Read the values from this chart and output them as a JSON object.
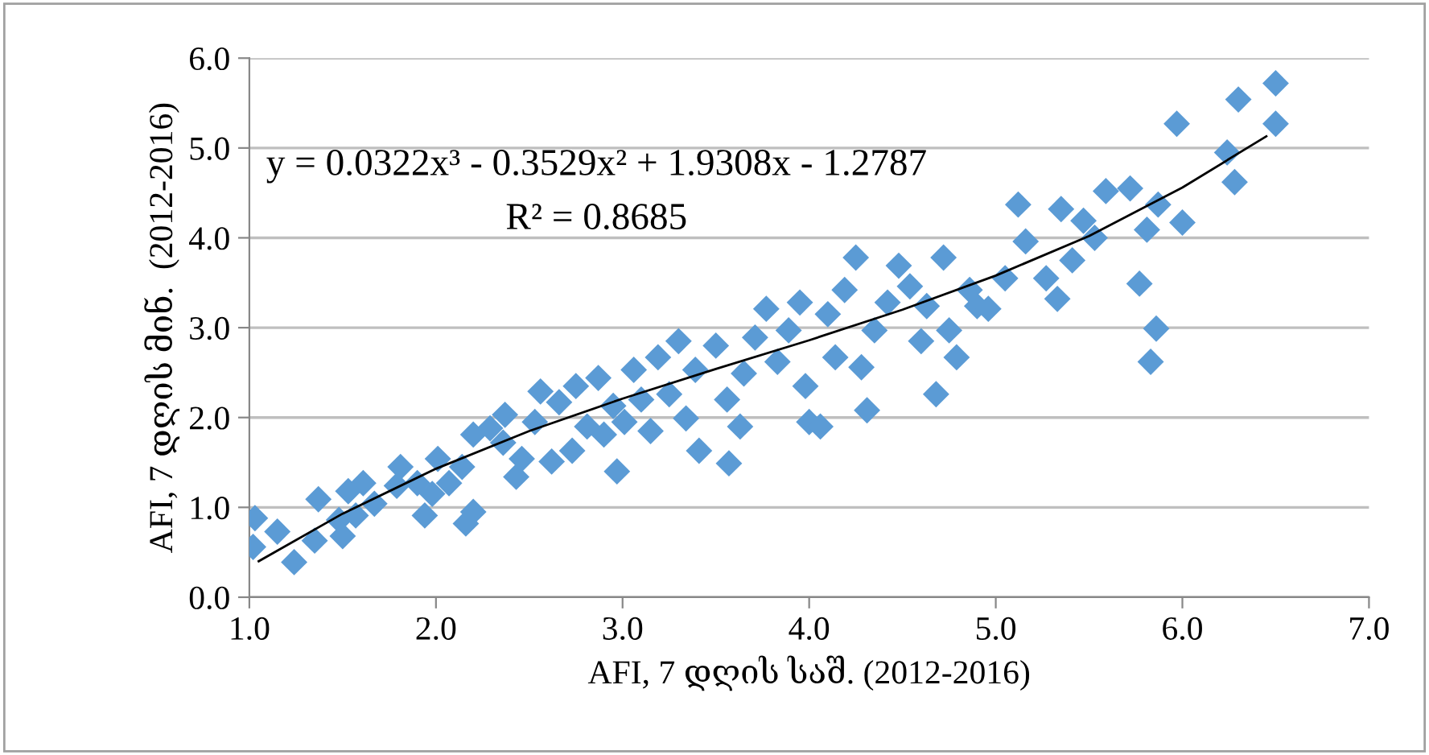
{
  "chart_data": {
    "type": "scatter",
    "xlabel": "AFI, 7 დღის საშ. (2012-2016)",
    "ylabel": "AFI, 7 დღის მინ.  (2012-2016)",
    "annotations": [
      "y = 0.0322x³ - 0.3529x² + 1.9308x - 1.2787",
      "R² = 0.8685"
    ],
    "xlim": [
      1.0,
      7.0
    ],
    "xticks": [
      {
        "value": 1,
        "label": "1.0"
      },
      {
        "value": 2,
        "label": "2.0"
      },
      {
        "value": 3,
        "label": "3.0"
      },
      {
        "value": 4,
        "label": "4.0"
      },
      {
        "value": 5,
        "label": "5.0"
      },
      {
        "value": 6,
        "label": "6.0"
      },
      {
        "value": 7,
        "label": "7.0"
      }
    ],
    "ylim": [
      0.0,
      6.0
    ],
    "yticks": [
      {
        "value": 0,
        "label": "0.0"
      },
      {
        "value": 1,
        "label": "1.0"
      },
      {
        "value": 2,
        "label": "2.0"
      },
      {
        "value": 3,
        "label": "3.0"
      },
      {
        "value": 4,
        "label": "4.0"
      },
      {
        "value": 5,
        "label": "5.0"
      },
      {
        "value": 6,
        "label": "6.0"
      }
    ],
    "grid": "y",
    "marker": "diamond",
    "series": [
      {
        "color": "#5b9bd5",
        "x": [
          1.03,
          1.02,
          1.15,
          1.24,
          1.35,
          1.37,
          1.48,
          1.5,
          1.57,
          1.61,
          1.53,
          1.67,
          1.79,
          1.81,
          1.9,
          1.94,
          1.98,
          2.01,
          2.07,
          2.14,
          2.16,
          2.2,
          2.2,
          2.29,
          2.36,
          2.37,
          2.43,
          2.46,
          2.53,
          2.56,
          2.62,
          2.66,
          2.73,
          2.75,
          2.81,
          2.87,
          2.9,
          2.95,
          2.97,
          3.01,
          3.06,
          3.1,
          3.15,
          3.19,
          3.25,
          3.3,
          3.34,
          3.39,
          3.41,
          3.5,
          3.56,
          3.57,
          3.63,
          3.65,
          3.71,
          3.77,
          3.83,
          3.89,
          3.95,
          3.98,
          4.0,
          4.06,
          4.1,
          4.14,
          4.19,
          4.25,
          4.28,
          4.31,
          4.35,
          4.42,
          4.48,
          4.54,
          4.6,
          4.63,
          4.68,
          4.72,
          4.75,
          4.79,
          4.86,
          4.9,
          4.96,
          5.05,
          5.16,
          5.27,
          5.33,
          5.41,
          5.12,
          5.35,
          5.47,
          5.53,
          5.59,
          5.72,
          5.77,
          5.81,
          5.83,
          5.86,
          5.87,
          5.97,
          6.0,
          6.24,
          6.28,
          6.3,
          6.5,
          6.5
        ],
        "values": [
          0.88,
          0.56,
          0.73,
          0.39,
          0.63,
          1.09,
          0.86,
          0.68,
          0.91,
          1.27,
          1.18,
          1.04,
          1.24,
          1.45,
          1.27,
          0.91,
          1.15,
          1.54,
          1.27,
          1.45,
          0.82,
          0.95,
          1.81,
          1.88,
          1.72,
          2.03,
          1.34,
          1.54,
          1.95,
          2.29,
          1.51,
          2.17,
          1.63,
          2.35,
          1.9,
          2.44,
          1.81,
          2.13,
          1.4,
          1.95,
          2.53,
          2.2,
          1.85,
          2.67,
          2.26,
          2.85,
          1.99,
          2.53,
          1.63,
          2.8,
          2.2,
          1.49,
          1.9,
          2.49,
          2.89,
          3.21,
          2.62,
          2.97,
          3.28,
          2.35,
          1.95,
          1.9,
          3.15,
          2.67,
          3.42,
          3.78,
          2.56,
          2.08,
          2.97,
          3.28,
          3.69,
          3.46,
          2.85,
          3.24,
          2.26,
          3.78,
          2.97,
          2.67,
          3.42,
          3.24,
          3.21,
          3.55,
          3.96,
          3.55,
          3.32,
          3.75,
          4.37,
          4.32,
          4.19,
          4.0,
          4.52,
          4.55,
          3.49,
          4.09,
          2.62,
          2.99,
          4.37,
          5.27,
          4.17,
          4.95,
          4.62,
          5.54,
          5.27,
          5.72
        ]
      },
      {
        "type": "line",
        "color": "#000000",
        "marker": "none",
        "x": [
          1.05,
          1.5,
          2,
          2.5,
          3,
          3.5,
          4,
          4.5,
          5,
          5.5,
          6,
          6.45
        ],
        "values": [
          0.4,
          0.93,
          1.43,
          1.85,
          2.21,
          2.54,
          2.86,
          3.2,
          3.58,
          4.02,
          4.56,
          5.13
        ]
      }
    ]
  }
}
